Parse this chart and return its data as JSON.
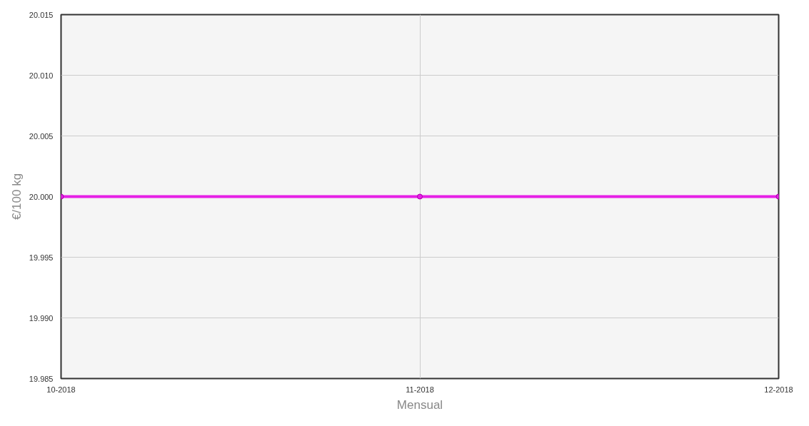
{
  "chart_data": {
    "type": "line",
    "xlabel": "Mensual",
    "ylabel": "€/100 kg",
    "categories": [
      "10-2018",
      "11-2018",
      "12-2018"
    ],
    "series": [
      {
        "color": "#e620e6",
        "values": [
          20.0,
          20.0,
          20.0
        ]
      }
    ],
    "ylim": [
      19.985,
      20.015
    ],
    "yticks": [
      {
        "value": 19.985,
        "label": "19.985"
      },
      {
        "value": 19.99,
        "label": "19.990"
      },
      {
        "value": 19.995,
        "label": "19.995"
      },
      {
        "value": 20.0,
        "label": "20.000"
      },
      {
        "value": 20.005,
        "label": "20.005"
      },
      {
        "value": 20.01,
        "label": "20.010"
      },
      {
        "value": 20.015,
        "label": "20.015"
      }
    ],
    "grid": true,
    "marker": "circle",
    "line_style": "solid"
  }
}
